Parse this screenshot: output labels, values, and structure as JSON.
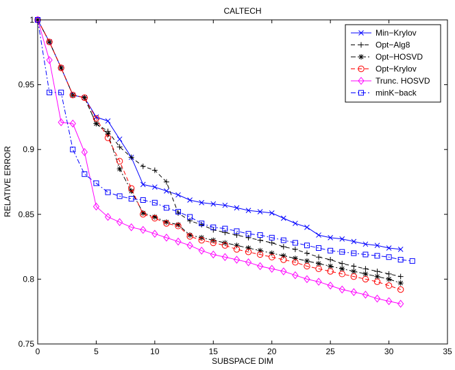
{
  "chart_data": {
    "type": "line",
    "title": "CALTECH",
    "xlabel": "SUBSPACE DIM",
    "ylabel": "RELATIVE ERROR",
    "xlim": [
      0,
      35
    ],
    "ylim": [
      0.75,
      1.0
    ],
    "xticks": [
      0,
      5,
      10,
      15,
      20,
      25,
      30,
      35
    ],
    "yticks": [
      0.75,
      0.8,
      0.85,
      0.9,
      0.95,
      1
    ],
    "ytick_labels": [
      "0.75",
      "0.8",
      "0.85",
      "0.9",
      "0.95",
      "1"
    ],
    "grid": false,
    "legend_position": "top-right",
    "series": [
      {
        "name": "Min−Krylov",
        "color": "#0000ff",
        "dash": "solid",
        "marker": "x",
        "x": [
          0,
          1,
          2,
          3,
          4,
          5,
          6,
          7,
          8,
          9,
          10,
          11,
          12,
          13,
          14,
          15,
          16,
          17,
          18,
          19,
          20,
          21,
          22,
          23,
          24,
          25,
          26,
          27,
          28,
          29,
          30,
          31
        ],
        "y": [
          1.0,
          0.983,
          0.963,
          0.942,
          0.94,
          0.925,
          0.922,
          0.908,
          0.894,
          0.873,
          0.871,
          0.868,
          0.865,
          0.861,
          0.859,
          0.858,
          0.857,
          0.855,
          0.853,
          0.852,
          0.851,
          0.847,
          0.843,
          0.84,
          0.834,
          0.832,
          0.831,
          0.829,
          0.827,
          0.826,
          0.824,
          0.823
        ]
      },
      {
        "name": "Opt−Alg8",
        "color": "#000000",
        "dash": "dash",
        "marker": "+",
        "x": [
          0,
          1,
          2,
          3,
          4,
          5,
          6,
          7,
          8,
          9,
          10,
          11,
          12,
          13,
          14,
          15,
          16,
          17,
          18,
          19,
          20,
          21,
          22,
          23,
          24,
          25,
          26,
          27,
          28,
          29,
          30,
          31
        ],
        "y": [
          1.0,
          0.983,
          0.963,
          0.942,
          0.94,
          0.92,
          0.914,
          0.902,
          0.894,
          0.887,
          0.884,
          0.875,
          0.851,
          0.845,
          0.842,
          0.838,
          0.836,
          0.834,
          0.832,
          0.83,
          0.828,
          0.825,
          0.823,
          0.82,
          0.817,
          0.815,
          0.812,
          0.81,
          0.808,
          0.806,
          0.804,
          0.802
        ]
      },
      {
        "name": "Opt−HOSVD",
        "color": "#000000",
        "dash": "dashdot",
        "marker": "*",
        "x": [
          0,
          1,
          2,
          3,
          4,
          5,
          6,
          7,
          8,
          9,
          10,
          11,
          12,
          13,
          14,
          15,
          16,
          17,
          18,
          19,
          20,
          21,
          22,
          23,
          24,
          25,
          26,
          27,
          28,
          29,
          30,
          31
        ],
        "y": [
          1.0,
          0.983,
          0.963,
          0.942,
          0.94,
          0.92,
          0.912,
          0.885,
          0.868,
          0.851,
          0.848,
          0.844,
          0.842,
          0.834,
          0.832,
          0.83,
          0.828,
          0.826,
          0.824,
          0.822,
          0.82,
          0.818,
          0.816,
          0.814,
          0.812,
          0.81,
          0.808,
          0.806,
          0.804,
          0.802,
          0.8,
          0.797
        ]
      },
      {
        "name": "Opt−Krylov",
        "color": "#ff0000",
        "dash": "dash",
        "marker": "o",
        "x": [
          0,
          1,
          2,
          3,
          4,
          5,
          6,
          7,
          8,
          9,
          10,
          11,
          12,
          13,
          14,
          15,
          16,
          17,
          18,
          19,
          20,
          21,
          22,
          23,
          24,
          25,
          26,
          27,
          28,
          29,
          30,
          31
        ],
        "y": [
          1.0,
          0.983,
          0.963,
          0.942,
          0.94,
          0.924,
          0.909,
          0.891,
          0.87,
          0.85,
          0.847,
          0.843,
          0.841,
          0.833,
          0.83,
          0.828,
          0.826,
          0.823,
          0.821,
          0.819,
          0.817,
          0.815,
          0.813,
          0.81,
          0.808,
          0.806,
          0.804,
          0.802,
          0.8,
          0.798,
          0.795,
          0.792
        ]
      },
      {
        "name": "Trunc. HOSVD",
        "color": "#ff00ff",
        "dash": "solid",
        "marker": "diamond",
        "x": [
          0,
          1,
          2,
          3,
          4,
          5,
          6,
          7,
          8,
          9,
          10,
          11,
          12,
          13,
          14,
          15,
          16,
          17,
          18,
          19,
          20,
          21,
          22,
          23,
          24,
          25,
          26,
          27,
          28,
          29,
          30,
          31
        ],
        "y": [
          1.0,
          0.969,
          0.921,
          0.92,
          0.898,
          0.856,
          0.848,
          0.844,
          0.84,
          0.838,
          0.835,
          0.832,
          0.829,
          0.826,
          0.822,
          0.819,
          0.817,
          0.815,
          0.813,
          0.81,
          0.808,
          0.806,
          0.803,
          0.8,
          0.798,
          0.795,
          0.792,
          0.79,
          0.788,
          0.785,
          0.783,
          0.781
        ]
      },
      {
        "name": "minK−back",
        "color": "#0000ff",
        "dash": "dashdot",
        "marker": "square",
        "x": [
          0,
          1,
          2,
          3,
          4,
          5,
          6,
          7,
          8,
          9,
          10,
          11,
          12,
          13,
          14,
          15,
          16,
          17,
          18,
          19,
          20,
          21,
          22,
          23,
          24,
          25,
          26,
          27,
          28,
          29,
          30,
          31,
          32
        ],
        "y": [
          1.0,
          0.944,
          0.944,
          0.9,
          0.881,
          0.874,
          0.867,
          0.864,
          0.862,
          0.861,
          0.859,
          0.855,
          0.852,
          0.848,
          0.843,
          0.84,
          0.839,
          0.837,
          0.835,
          0.834,
          0.832,
          0.83,
          0.828,
          0.826,
          0.824,
          0.822,
          0.821,
          0.82,
          0.819,
          0.818,
          0.817,
          0.815,
          0.814
        ]
      }
    ]
  }
}
